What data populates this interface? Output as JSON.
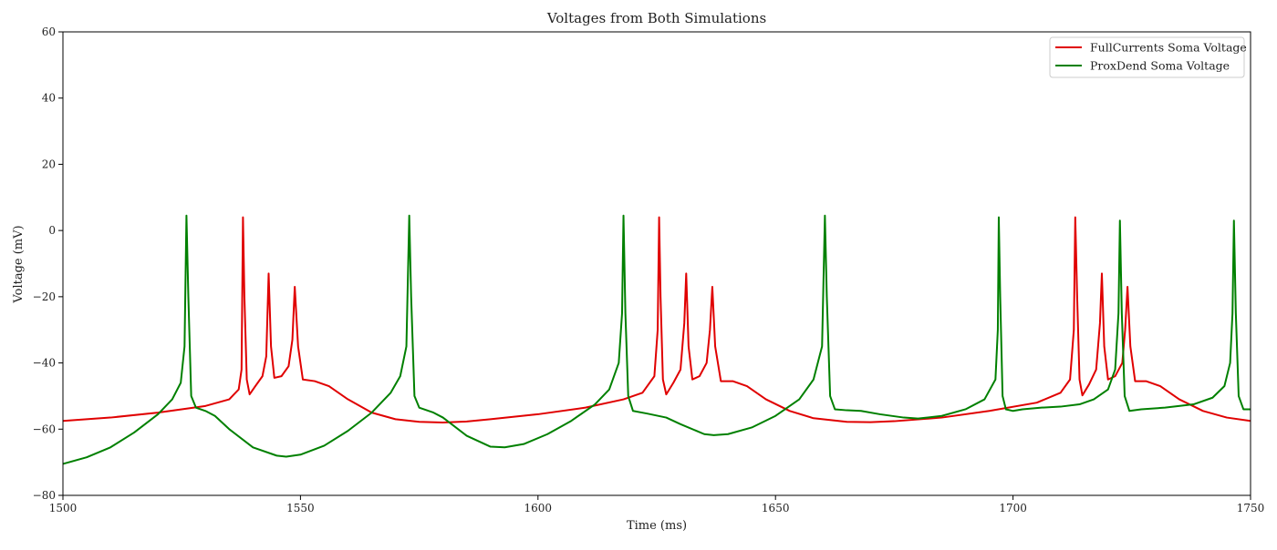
{
  "chart_data": {
    "type": "line",
    "title": "Voltages from Both Simulations",
    "xlabel": "Time (ms)",
    "ylabel": "Voltage (mV)",
    "xlim": [
      1500,
      1750
    ],
    "ylim": [
      -80,
      60
    ],
    "xticks": [
      1500,
      1550,
      1600,
      1650,
      1700,
      1750
    ],
    "yticks": [
      -80,
      -60,
      -40,
      -20,
      0,
      20,
      40,
      60
    ],
    "xtick_labels": [
      "1500",
      "1550",
      "1600",
      "1650",
      "1700",
      "1750"
    ],
    "ytick_labels": [
      "−80",
      "−60",
      "−40",
      "−20",
      "0",
      "20",
      "40",
      "60"
    ],
    "grid": false,
    "legend_position": "top-right",
    "series": [
      {
        "name": "FullCurrents Soma Voltage",
        "color": "#e00000",
        "points": [
          [
            1500,
            -57.5
          ],
          [
            1510,
            -56.5
          ],
          [
            1520,
            -55
          ],
          [
            1530,
            -53
          ],
          [
            1535,
            -51
          ],
          [
            1537,
            -48
          ],
          [
            1537.6,
            -42
          ],
          [
            1537.9,
            4
          ],
          [
            1538.2,
            -20
          ],
          [
            1538.7,
            -45
          ],
          [
            1539.3,
            -49.5
          ],
          [
            1540.5,
            -47
          ],
          [
            1542,
            -44
          ],
          [
            1542.8,
            -38
          ],
          [
            1543.3,
            -13
          ],
          [
            1543.8,
            -35
          ],
          [
            1544.5,
            -44.5
          ],
          [
            1546,
            -44
          ],
          [
            1547.5,
            -41
          ],
          [
            1548.3,
            -33
          ],
          [
            1548.8,
            -17
          ],
          [
            1549.5,
            -35
          ],
          [
            1550.5,
            -45
          ],
          [
            1553,
            -45.5
          ],
          [
            1556,
            -47
          ],
          [
            1560,
            -51
          ],
          [
            1565,
            -55
          ],
          [
            1570,
            -57
          ],
          [
            1575,
            -57.8
          ],
          [
            1580,
            -58
          ],
          [
            1585,
            -57.7
          ],
          [
            1590,
            -57
          ],
          [
            1600,
            -55.5
          ],
          [
            1610,
            -53.5
          ],
          [
            1618,
            -51
          ],
          [
            1622,
            -49
          ],
          [
            1624.5,
            -44
          ],
          [
            1625.2,
            -30
          ],
          [
            1625.5,
            4
          ],
          [
            1625.8,
            -20
          ],
          [
            1626.3,
            -45
          ],
          [
            1627,
            -49.5
          ],
          [
            1628.5,
            -46
          ],
          [
            1630,
            -42
          ],
          [
            1630.8,
            -28
          ],
          [
            1631.2,
            -13
          ],
          [
            1631.7,
            -35
          ],
          [
            1632.5,
            -45
          ],
          [
            1634,
            -44
          ],
          [
            1635.5,
            -40
          ],
          [
            1636.2,
            -30
          ],
          [
            1636.7,
            -17
          ],
          [
            1637.3,
            -35
          ],
          [
            1638.5,
            -45.5
          ],
          [
            1641,
            -45.5
          ],
          [
            1644,
            -47
          ],
          [
            1648,
            -51
          ],
          [
            1653,
            -54.5
          ],
          [
            1658,
            -56.7
          ],
          [
            1665,
            -57.8
          ],
          [
            1670,
            -57.9
          ],
          [
            1675,
            -57.6
          ],
          [
            1685,
            -56.5
          ],
          [
            1695,
            -54.5
          ],
          [
            1705,
            -52
          ],
          [
            1710,
            -49
          ],
          [
            1712,
            -45
          ],
          [
            1712.8,
            -30
          ],
          [
            1713.1,
            4
          ],
          [
            1713.5,
            -20
          ],
          [
            1714,
            -45
          ],
          [
            1714.6,
            -49.8
          ],
          [
            1716,
            -46.5
          ],
          [
            1717.5,
            -42
          ],
          [
            1718.3,
            -28
          ],
          [
            1718.7,
            -13
          ],
          [
            1719.2,
            -35
          ],
          [
            1720,
            -45
          ],
          [
            1721.5,
            -44
          ],
          [
            1723,
            -40
          ],
          [
            1723.6,
            -30
          ],
          [
            1724.1,
            -17
          ],
          [
            1724.7,
            -35
          ],
          [
            1725.7,
            -45.5
          ],
          [
            1728,
            -45.5
          ],
          [
            1731,
            -47
          ],
          [
            1735,
            -51
          ],
          [
            1740,
            -54.5
          ],
          [
            1745,
            -56.5
          ],
          [
            1750,
            -57.5
          ]
        ]
      },
      {
        "name": "ProxDend Soma Voltage",
        "color": "#008000",
        "points": [
          [
            1500,
            -70.5
          ],
          [
            1505,
            -68.5
          ],
          [
            1510,
            -65.5
          ],
          [
            1515,
            -61
          ],
          [
            1520,
            -55.5
          ],
          [
            1523,
            -51
          ],
          [
            1524.8,
            -46
          ],
          [
            1525.6,
            -35
          ],
          [
            1526,
            4.5
          ],
          [
            1526.4,
            -20
          ],
          [
            1527,
            -50
          ],
          [
            1528,
            -53.5
          ],
          [
            1530,
            -54.5
          ],
          [
            1532,
            -56
          ],
          [
            1535,
            -60
          ],
          [
            1540,
            -65.5
          ],
          [
            1545,
            -68
          ],
          [
            1547,
            -68.3
          ],
          [
            1550,
            -67.7
          ],
          [
            1555,
            -65
          ],
          [
            1560,
            -60.5
          ],
          [
            1565,
            -55
          ],
          [
            1569,
            -49
          ],
          [
            1571,
            -44
          ],
          [
            1572.3,
            -35
          ],
          [
            1572.9,
            4.5
          ],
          [
            1573.3,
            -20
          ],
          [
            1574,
            -50
          ],
          [
            1575,
            -53.5
          ],
          [
            1578,
            -55
          ],
          [
            1580,
            -56.5
          ],
          [
            1585,
            -62
          ],
          [
            1590,
            -65.3
          ],
          [
            1593,
            -65.5
          ],
          [
            1597,
            -64.5
          ],
          [
            1602,
            -61.5
          ],
          [
            1607,
            -57.5
          ],
          [
            1612,
            -52.5
          ],
          [
            1615,
            -48
          ],
          [
            1617,
            -40
          ],
          [
            1617.7,
            -25
          ],
          [
            1618,
            4.5
          ],
          [
            1618.4,
            -25
          ],
          [
            1619,
            -50
          ],
          [
            1620,
            -54.5
          ],
          [
            1623,
            -55.3
          ],
          [
            1627,
            -56.5
          ],
          [
            1630,
            -58.5
          ],
          [
            1635,
            -61.5
          ],
          [
            1637,
            -61.8
          ],
          [
            1640,
            -61.5
          ],
          [
            1645,
            -59.5
          ],
          [
            1650,
            -56
          ],
          [
            1655,
            -51
          ],
          [
            1658,
            -45
          ],
          [
            1659.8,
            -35
          ],
          [
            1660.4,
            4.5
          ],
          [
            1660.8,
            -20
          ],
          [
            1661.5,
            -50
          ],
          [
            1662.5,
            -54
          ],
          [
            1665,
            -54.3
          ],
          [
            1668,
            -54.5
          ],
          [
            1672,
            -55.5
          ],
          [
            1677,
            -56.5
          ],
          [
            1680,
            -56.8
          ],
          [
            1685,
            -56
          ],
          [
            1690,
            -54
          ],
          [
            1694,
            -51
          ],
          [
            1696.3,
            -45
          ],
          [
            1696.8,
            -30
          ],
          [
            1697,
            4
          ],
          [
            1697.3,
            -20
          ],
          [
            1697.8,
            -50
          ],
          [
            1698.5,
            -54
          ],
          [
            1700,
            -54.5
          ],
          [
            1702,
            -54
          ],
          [
            1706,
            -53.5
          ],
          [
            1710,
            -53.2
          ],
          [
            1714,
            -52.5
          ],
          [
            1717,
            -51
          ],
          [
            1720,
            -48
          ],
          [
            1721.5,
            -42
          ],
          [
            1722.2,
            -25
          ],
          [
            1722.5,
            3
          ],
          [
            1722.9,
            -25
          ],
          [
            1723.5,
            -50
          ],
          [
            1724.5,
            -54.5
          ],
          [
            1727,
            -54
          ],
          [
            1732,
            -53.5
          ],
          [
            1738,
            -52.5
          ],
          [
            1742,
            -50.5
          ],
          [
            1744.5,
            -47
          ],
          [
            1745.7,
            -40
          ],
          [
            1746.2,
            -25
          ],
          [
            1746.5,
            3
          ],
          [
            1746.9,
            -25
          ],
          [
            1747.5,
            -50
          ],
          [
            1748.5,
            -54
          ],
          [
            1750,
            -54
          ]
        ]
      }
    ]
  }
}
